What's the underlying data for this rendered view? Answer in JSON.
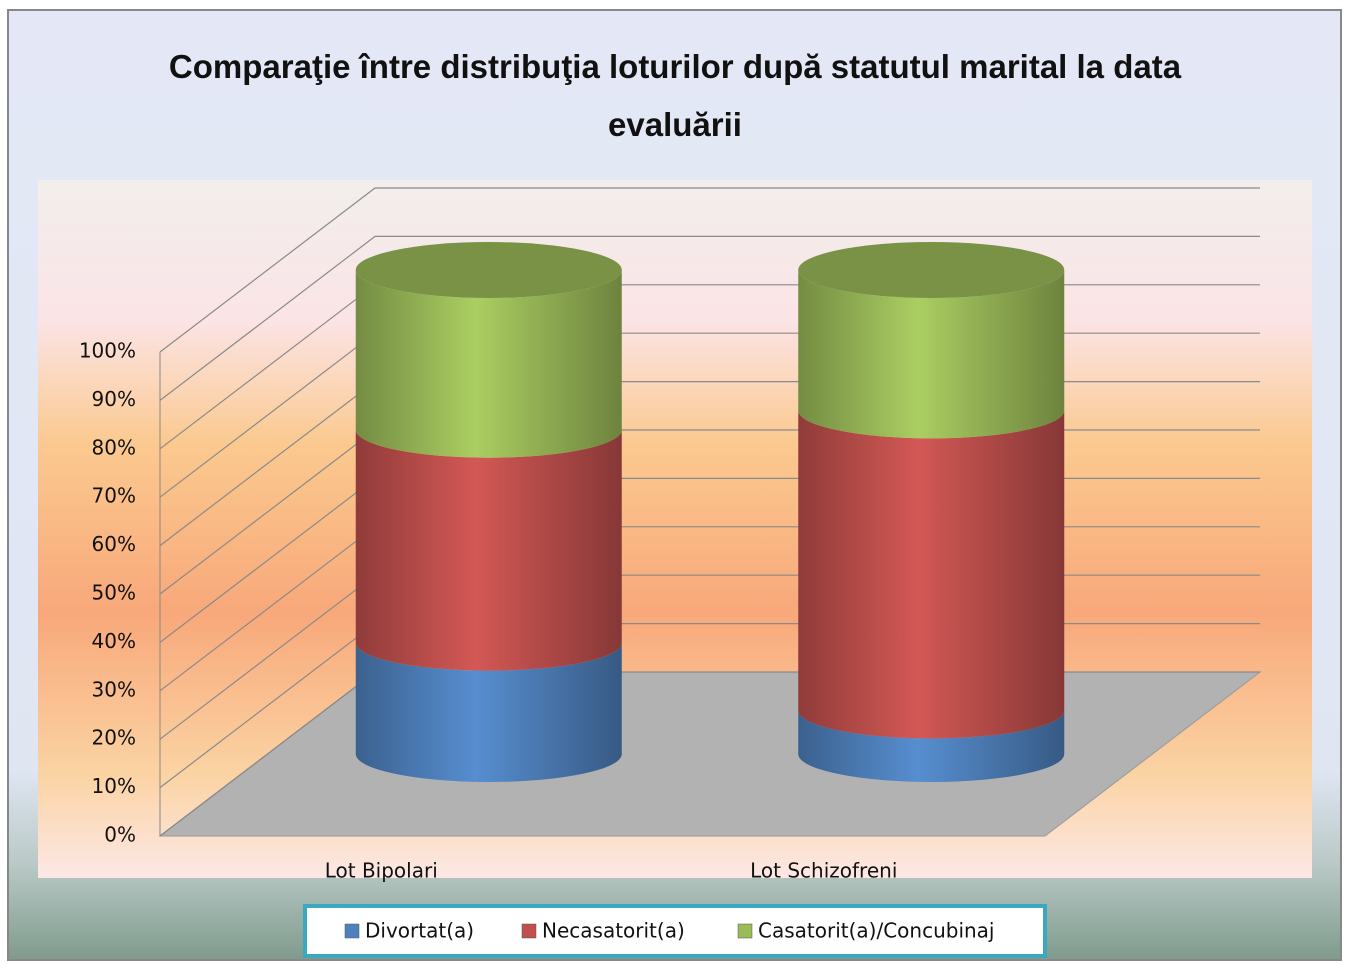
{
  "chart_data": {
    "type": "bar3d_cylinder_stacked",
    "title": "Comparaţie între distribuţia loturilor după statutul marital la data evaluării",
    "categories": [
      "Lot Bipolari",
      "Lot Schizofreni"
    ],
    "series": [
      {
        "name": "Divortat(a)",
        "color": "#4f81bd",
        "values": [
          23,
          9
        ]
      },
      {
        "name": "Necasatorit(a)",
        "color": "#c0504d",
        "values": [
          44,
          62
        ]
      },
      {
        "name": "Casatorit(a)/Concubinaj",
        "color": "#9bbb59",
        "values": [
          33,
          29
        ]
      }
    ],
    "ylim": [
      0,
      100
    ],
    "yticks": [
      {
        "value": 0,
        "label": "0%"
      },
      {
        "value": 10,
        "label": "10%"
      },
      {
        "value": 20,
        "label": "20%"
      },
      {
        "value": 30,
        "label": "30%"
      },
      {
        "value": 40,
        "label": "40%"
      },
      {
        "value": 50,
        "label": "50%"
      },
      {
        "value": 60,
        "label": "60%"
      },
      {
        "value": 70,
        "label": "70%"
      },
      {
        "value": 80,
        "label": "80%"
      },
      {
        "value": 90,
        "label": "90%"
      },
      {
        "value": 100,
        "label": "100%"
      }
    ],
    "grid": true,
    "legend": "bottom"
  }
}
